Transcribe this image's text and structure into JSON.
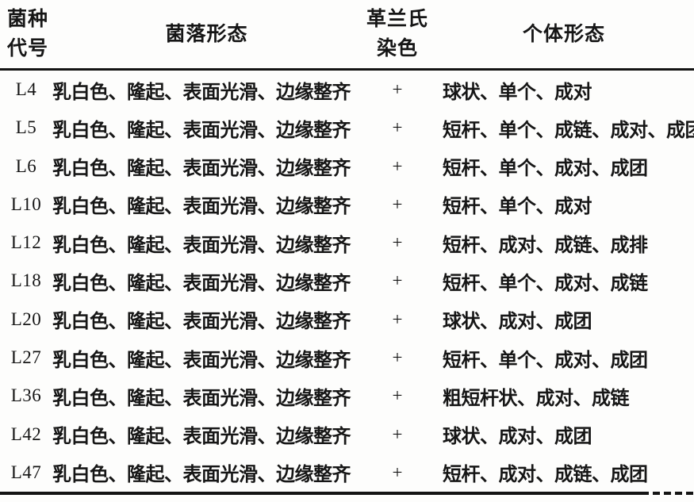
{
  "table": {
    "headers": {
      "strain_code": {
        "lines": [
          "菌种",
          "代号"
        ]
      },
      "colony": {
        "label": "菌落形态"
      },
      "gram": {
        "lines": [
          "革兰氏",
          "染色"
        ]
      },
      "individual": {
        "label": "个体形态"
      }
    },
    "rows": [
      {
        "code": "L4",
        "colony": "乳白色、隆起、表面光滑、边缘整齐",
        "gram": "+",
        "individual": "球状、单个、成对"
      },
      {
        "code": "L5",
        "colony": "乳白色、隆起、表面光滑、边缘整齐",
        "gram": "+",
        "individual": "短杆、单个、成链、成对、成团"
      },
      {
        "code": "L6",
        "colony": "乳白色、隆起、表面光滑、边缘整齐",
        "gram": "+",
        "individual": "短杆、单个、成对、成团"
      },
      {
        "code": "L10",
        "colony": "乳白色、隆起、表面光滑、边缘整齐",
        "gram": "+",
        "individual": "短杆、单个、成对"
      },
      {
        "code": "L12",
        "colony": "乳白色、隆起、表面光滑、边缘整齐",
        "gram": "+",
        "individual": "短杆、成对、成链、成排"
      },
      {
        "code": "L18",
        "colony": "乳白色、隆起、表面光滑、边缘整齐",
        "gram": "+",
        "individual": "短杆、单个、成对、成链"
      },
      {
        "code": "L20",
        "colony": "乳白色、隆起、表面光滑、边缘整齐",
        "gram": "+",
        "individual": "球状、成对、成团"
      },
      {
        "code": "L27",
        "colony": "乳白色、隆起、表面光滑、边缘整齐",
        "gram": "+",
        "individual": "短杆、单个、成对、成团"
      },
      {
        "code": "L36",
        "colony": "乳白色、隆起、表面光滑、边缘整齐",
        "gram": "+",
        "individual": "粗短杆状、成对、成链"
      },
      {
        "code": "L42",
        "colony": "乳白色、隆起、表面光滑、边缘整齐",
        "gram": "+",
        "individual": "球状、成对、成团"
      },
      {
        "code": "L47",
        "colony": "乳白色、隆起、表面光滑、边缘整齐",
        "gram": "+",
        "individual": "短杆、成对、成链、成团"
      }
    ]
  }
}
